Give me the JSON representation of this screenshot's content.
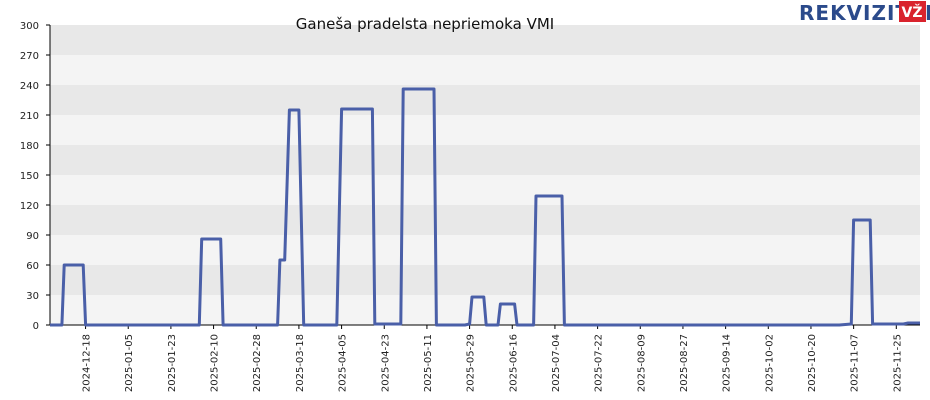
{
  "chart_data": {
    "type": "line",
    "title": "Ganeša pradelsta nepriemoka VMI",
    "xlabel": "",
    "ylabel": "",
    "ylim": [
      0,
      300
    ],
    "yticks": [
      0,
      30,
      60,
      90,
      120,
      150,
      180,
      210,
      240,
      270,
      300
    ],
    "xlim": [
      "2024-12-03",
      "2025-12-05"
    ],
    "xticks": [
      "2024-12-18",
      "2025-01-05",
      "2025-01-23",
      "2025-02-10",
      "2025-02-28",
      "2025-03-18",
      "2025-04-05",
      "2025-04-23",
      "2025-05-11",
      "2025-05-29",
      "2025-06-16",
      "2025-07-04",
      "2025-07-22",
      "2025-08-09",
      "2025-08-27",
      "2025-09-14",
      "2025-10-02",
      "2025-10-20",
      "2025-11-07",
      "2025-11-25"
    ],
    "grid": "horizontal bands",
    "legend": "none",
    "colors": {
      "line": "#4a5fa8",
      "band_light": "#f4f4f4",
      "band_dark": "#e8e8e8"
    },
    "series": [
      {
        "points": [
          [
            "2024-12-03",
            0
          ],
          [
            "2024-12-08",
            0
          ],
          [
            "2024-12-09",
            60
          ],
          [
            "2024-12-17",
            60
          ],
          [
            "2024-12-18",
            0
          ],
          [
            "2025-02-04",
            0
          ],
          [
            "2025-02-05",
            86
          ],
          [
            "2025-02-13",
            86
          ],
          [
            "2025-02-14",
            0
          ],
          [
            "2025-03-09",
            0
          ],
          [
            "2025-03-10",
            65
          ],
          [
            "2025-03-12",
            65
          ],
          [
            "2025-03-14",
            215
          ],
          [
            "2025-03-18",
            215
          ],
          [
            "2025-03-20",
            0
          ],
          [
            "2025-04-03",
            0
          ],
          [
            "2025-04-05",
            216
          ],
          [
            "2025-04-18",
            216
          ],
          [
            "2025-04-19",
            1
          ],
          [
            "2025-04-30",
            1
          ],
          [
            "2025-05-01",
            236
          ],
          [
            "2025-05-14",
            236
          ],
          [
            "2025-05-15",
            0
          ],
          [
            "2025-05-27",
            0
          ],
          [
            "2025-05-29",
            1
          ],
          [
            "2025-05-30",
            28
          ],
          [
            "2025-06-04",
            28
          ],
          [
            "2025-06-05",
            0
          ],
          [
            "2025-06-10",
            0
          ],
          [
            "2025-06-11",
            21
          ],
          [
            "2025-06-17",
            21
          ],
          [
            "2025-06-18",
            0
          ],
          [
            "2025-06-25",
            0
          ],
          [
            "2025-06-26",
            129
          ],
          [
            "2025-07-07",
            129
          ],
          [
            "2025-07-08",
            0
          ],
          [
            "2025-11-01",
            0
          ],
          [
            "2025-11-06",
            1
          ],
          [
            "2025-11-07",
            105
          ],
          [
            "2025-11-14",
            105
          ],
          [
            "2025-11-15",
            1
          ],
          [
            "2025-11-28",
            1
          ],
          [
            "2025-11-30",
            2
          ],
          [
            "2025-12-05",
            2
          ]
        ]
      }
    ]
  },
  "brand": {
    "name": "REKVIZITAI",
    "badge": "VŽ",
    "color": "#2b4a8b",
    "badge_color": "#d9232d"
  }
}
